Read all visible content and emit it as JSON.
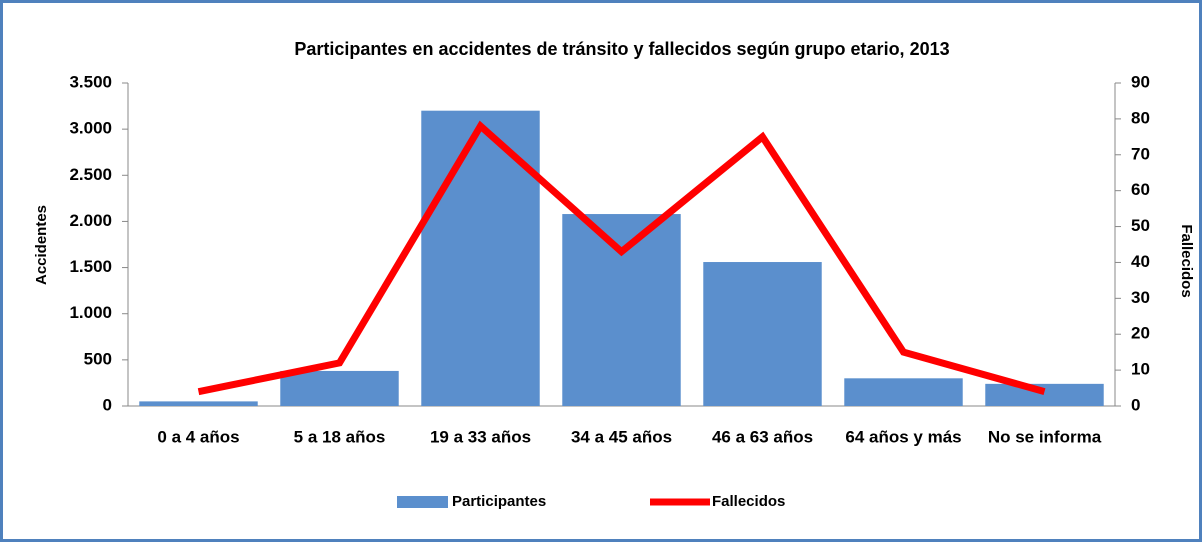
{
  "chart_data": {
    "type": "bar",
    "title": "Participantes en accidentes de tránsito y fallecidos según grupo etario, 2013",
    "y_label": "Accidentes",
    "y2_label": "Fallecidos",
    "categories": [
      "0 a 4 años",
      "5 a 18 años",
      "19 a 33 años",
      "34 a 45 años",
      "46 a 63 años",
      "64 años y más",
      "No se informa"
    ],
    "series": [
      {
        "name": "Participantes",
        "type": "bar",
        "color": "#5b8fcd",
        "values": [
          50,
          380,
          3200,
          2080,
          1560,
          300,
          240
        ]
      },
      {
        "name": "Fallecidos",
        "type": "line",
        "axis": "y2",
        "color": "#ff0000",
        "values": [
          4,
          12,
          78,
          43,
          75,
          15,
          4
        ]
      }
    ],
    "ylim": [
      0,
      3500
    ],
    "yticks": [
      0,
      500,
      {
        "value": 1000,
        "label": "1.000"
      },
      {
        "value": 1500,
        "label": "1.500"
      },
      {
        "value": 2000,
        "label": "2.000"
      },
      {
        "value": 2500,
        "label": "2.500"
      },
      {
        "value": 3000,
        "label": "3.000"
      },
      {
        "value": 3500,
        "label": "3.500"
      }
    ],
    "y2lim": [
      0,
      90
    ],
    "y2ticks": [
      0,
      10,
      20,
      30,
      40,
      50,
      60,
      70,
      80,
      90
    ],
    "legend": "bottom"
  }
}
